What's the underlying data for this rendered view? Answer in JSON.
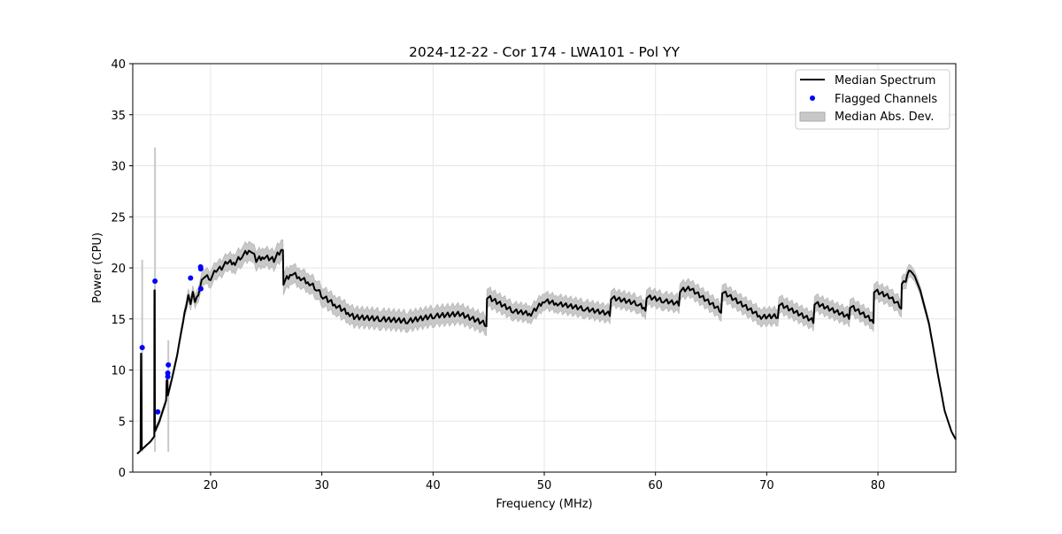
{
  "chart_data": {
    "type": "line",
    "title": "2024-12-22 - Cor 174 - LWA101 - Pol YY",
    "xlabel": "Frequency (MHz)",
    "ylabel": "Power (CPU)",
    "xlim": [
      13,
      87
    ],
    "ylim": [
      0,
      40
    ],
    "xticks": [
      20,
      30,
      40,
      50,
      60,
      70,
      80
    ],
    "yticks": [
      0,
      5,
      10,
      15,
      20,
      25,
      30,
      35,
      40
    ],
    "grid": true,
    "legend_position": "top-right",
    "legend": [
      "Median Spectrum",
      "Flagged Channels",
      "Median Abs. Dev."
    ],
    "colors": {
      "median": "#000000",
      "flagged": "#0000ff",
      "mad": "#c8c8c8"
    },
    "median_spectrum": {
      "x": [
        13.4,
        13.7,
        13.74,
        13.76,
        13.8,
        14.6,
        14.93,
        14.95,
        14.97,
        15.0,
        15.4,
        16.0,
        16.05,
        16.1,
        16.15,
        16.6,
        17.0,
        17.4,
        17.8,
        18.0,
        18.2,
        18.4,
        18.6,
        18.9,
        19.1,
        19.2,
        19.4,
        20,
        20.5,
        21,
        21.5,
        22.2,
        22.8,
        23.6,
        24.1,
        24.8,
        25.7,
        26.5,
        26.55,
        27.3,
        28.1,
        28.9,
        29.5,
        30.1,
        31.3,
        32.5,
        32.9,
        35.3,
        37.7,
        40.1,
        42.4,
        44.8,
        44.85,
        47.2,
        48.8,
        50.0,
        51.2,
        53.6,
        55.9,
        56.0,
        58.4,
        59.1,
        59.2,
        60.7,
        62.1,
        62.2,
        63.1,
        65.9,
        66.0,
        69.5,
        71.0,
        71.1,
        74.2,
        74.3,
        77.4,
        77.5,
        79.6,
        79.65,
        81.0,
        82.1,
        82.15,
        82.5,
        82.8,
        83.3,
        83.8,
        84.6,
        85.4,
        86.0,
        86.6,
        87.0
      ],
      "y": [
        1.8,
        2.1,
        11.6,
        11.6,
        2.2,
        3.0,
        3.5,
        17.8,
        17.8,
        4.0,
        5.0,
        7.0,
        9.0,
        9.0,
        7.5,
        9.5,
        11.5,
        14.0,
        16.3,
        17.5,
        16.6,
        17.8,
        16.8,
        17.5,
        18.5,
        19.0,
        19.2,
        19.0,
        19.8,
        20.0,
        20.6,
        20.5,
        21.2,
        21.8,
        20.8,
        21.1,
        20.8,
        22.0,
        18.6,
        19.5,
        19.0,
        18.5,
        18.0,
        17.2,
        16.3,
        15.5,
        15.2,
        15.0,
        14.8,
        15.3,
        15.5,
        14.5,
        17.2,
        15.8,
        15.5,
        16.8,
        16.5,
        16.0,
        15.5,
        17.1,
        16.5,
        16.0,
        17.2,
        16.8,
        16.5,
        17.8,
        18.0,
        15.8,
        17.7,
        15.2,
        15.3,
        16.5,
        14.8,
        16.6,
        15.2,
        16.3,
        14.8,
        17.8,
        17.2,
        16.2,
        18.6,
        18.8,
        19.9,
        19.2,
        17.8,
        14.5,
        9.5,
        6.0,
        4.0,
        3.2
      ],
      "mad": [
        0,
        0,
        0,
        0,
        0,
        0.1,
        0.1,
        0.1,
        0.1,
        0.3,
        0.3,
        0.3,
        0.3,
        0.3,
        0.3,
        0.3,
        0.3,
        0.4,
        0.5,
        0.6,
        0.6,
        0.6,
        0.6,
        0.7,
        0.7,
        0.7,
        0.7,
        0.8,
        0.8,
        0.8,
        0.8,
        0.9,
        0.9,
        0.9,
        0.9,
        0.9,
        0.9,
        1.0,
        1.0,
        0.9,
        0.9,
        0.9,
        0.9,
        0.9,
        0.9,
        0.9,
        0.9,
        0.9,
        0.9,
        0.9,
        0.9,
        0.9,
        0.9,
        0.8,
        0.8,
        0.8,
        0.8,
        0.8,
        0.8,
        0.8,
        0.8,
        0.8,
        0.8,
        0.8,
        0.8,
        0.8,
        0.8,
        0.8,
        0.8,
        0.8,
        0.8,
        0.8,
        0.8,
        0.8,
        0.8,
        0.8,
        0.8,
        0.8,
        0.8,
        0.8,
        0.7,
        0.7,
        0.6,
        0.5,
        0.4,
        0.3,
        0.2,
        0.1,
        0.05,
        0.05
      ]
    },
    "mad_spikes": [
      {
        "x": 13.85,
        "top": 20.8
      },
      {
        "x": 15.0,
        "top": 31.8
      },
      {
        "x": 16.2,
        "top": 12.9
      }
    ],
    "flagged_channels": {
      "x": [
        13.85,
        15.0,
        15.25,
        16.2,
        16.15,
        16.15,
        18.2,
        19.1,
        19.12,
        19.12
      ],
      "y": [
        12.2,
        18.7,
        5.9,
        10.5,
        9.7,
        9.35,
        19.0,
        20.1,
        19.9,
        17.95
      ]
    }
  }
}
